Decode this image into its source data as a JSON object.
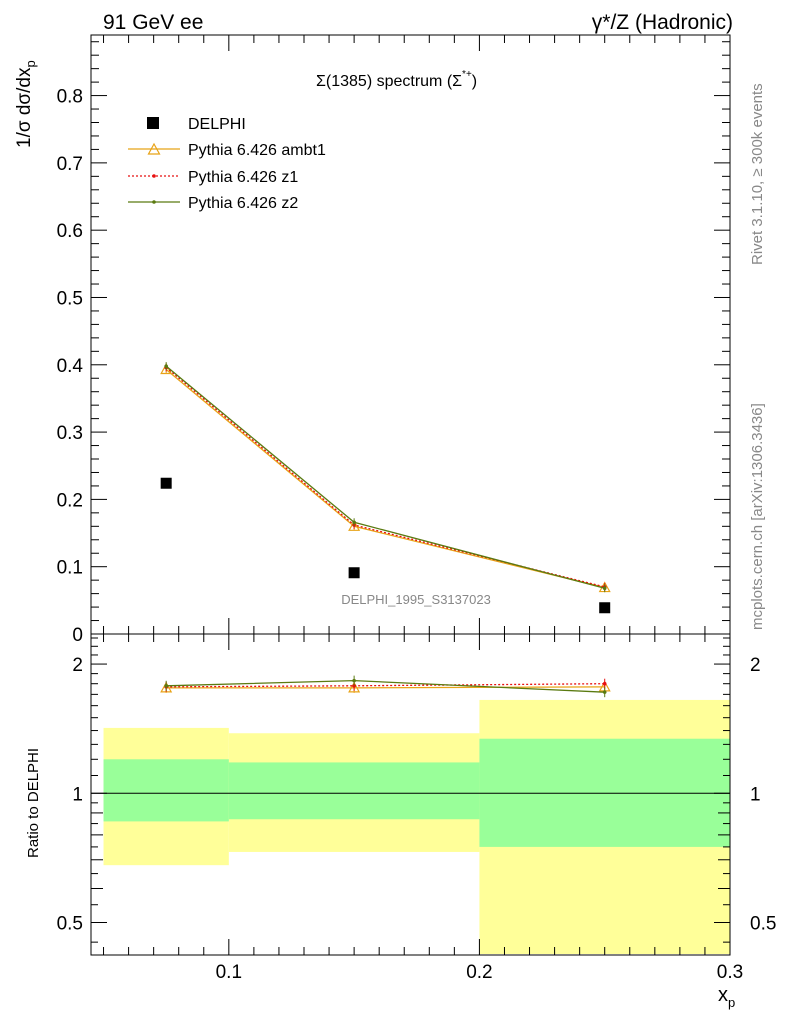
{
  "header": {
    "left": "91 GeV ee",
    "right": "γ*/Z (Hadronic)"
  },
  "side_labels": {
    "rivet": "Rivet 3.1.10, ≥ 300k events",
    "mcplots": "mcplots.cern.ch [arXiv:1306.3436]"
  },
  "colors": {
    "data": "#000000",
    "ambt1": "#e8a317",
    "z1": "#e81010",
    "z2": "#5a7a10",
    "band_inner": "#99ff99",
    "band_outer": "#ffff99"
  },
  "chart_data": [
    {
      "type": "scatter",
      "title": "Σ(1385) spectrum (Σ*+)",
      "title_main": "Σ(1385) spectrum (Σ",
      "title_sup": "*+",
      "title_close": ")",
      "watermark": "DELPHI_1995_S3137023",
      "ylabel": "1/σ dσ/dx",
      "ylabel_sub": "p",
      "xlim": [
        0.045,
        0.3
      ],
      "ylim": [
        0,
        0.89
      ],
      "yticks": [
        0,
        0.1,
        0.2,
        0.3,
        0.4,
        0.5,
        0.6,
        0.7,
        0.8
      ],
      "ytick_labels": [
        "0",
        "0.1",
        "0.2",
        "0.3",
        "0.4",
        "0.5",
        "0.6",
        "0.7",
        "0.8"
      ],
      "x": [
        0.075,
        0.15,
        0.25
      ],
      "legend": [
        "DELPHI",
        "Pythia 6.426 ambt1",
        "Pythia 6.426 z1",
        "Pythia 6.426 z2"
      ],
      "series": [
        {
          "name": "DELPHI",
          "values": [
            0.224,
            0.091,
            0.039
          ]
        },
        {
          "name": "Pythia 6.426 ambt1",
          "values": [
            0.393,
            0.16,
            0.069
          ]
        },
        {
          "name": "Pythia 6.426 z1",
          "values": [
            0.396,
            0.162,
            0.07
          ]
        },
        {
          "name": "Pythia 6.426 z2",
          "values": [
            0.398,
            0.166,
            0.068
          ]
        }
      ]
    },
    {
      "type": "scatter",
      "ylabel": "Ratio to DELPHI",
      "xlabel": "x",
      "xlabel_sub": "p",
      "yscale": "log",
      "xlim": [
        0.045,
        0.3
      ],
      "ylim": [
        0.42,
        2.35
      ],
      "xticks": [
        0.1,
        0.2,
        0.3
      ],
      "xtick_labels": [
        "0.1",
        "0.2",
        "0.3"
      ],
      "yticks": [
        0.5,
        1,
        2
      ],
      "ytick_labels": [
        "0.5",
        "1",
        "2"
      ],
      "x": [
        0.075,
        0.15,
        0.25
      ],
      "bin_edges": [
        0.05,
        0.1,
        0.2,
        0.3
      ],
      "band_inner": [
        [
          0.86,
          1.2
        ],
        [
          0.87,
          1.18
        ],
        [
          0.75,
          1.34
        ]
      ],
      "band_outer": [
        [
          0.68,
          1.42
        ],
        [
          0.73,
          1.38
        ],
        [
          0.39,
          1.65
        ]
      ],
      "series": [
        {
          "name": "Pythia 6.426 ambt1",
          "values": [
            1.76,
            1.76,
            1.77
          ]
        },
        {
          "name": "Pythia 6.426 z1",
          "values": [
            1.77,
            1.78,
            1.8
          ]
        },
        {
          "name": "Pythia 6.426 z2",
          "values": [
            1.78,
            1.83,
            1.72
          ]
        }
      ]
    }
  ]
}
